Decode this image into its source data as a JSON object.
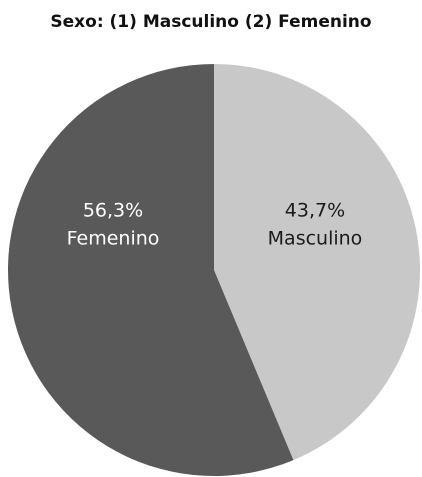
{
  "chart_data": {
    "type": "pie",
    "title": "Sexo: (1) Masculino (2) Femenino",
    "categories": [
      "Masculino",
      "Femenino"
    ],
    "values": [
      43.7,
      56.3
    ],
    "value_labels": [
      "43,7%",
      "56,3%"
    ],
    "colors": [
      "#c8c8c8",
      "#595959"
    ],
    "label_colors": [
      "#1a1a1a",
      "#ffffff"
    ]
  }
}
